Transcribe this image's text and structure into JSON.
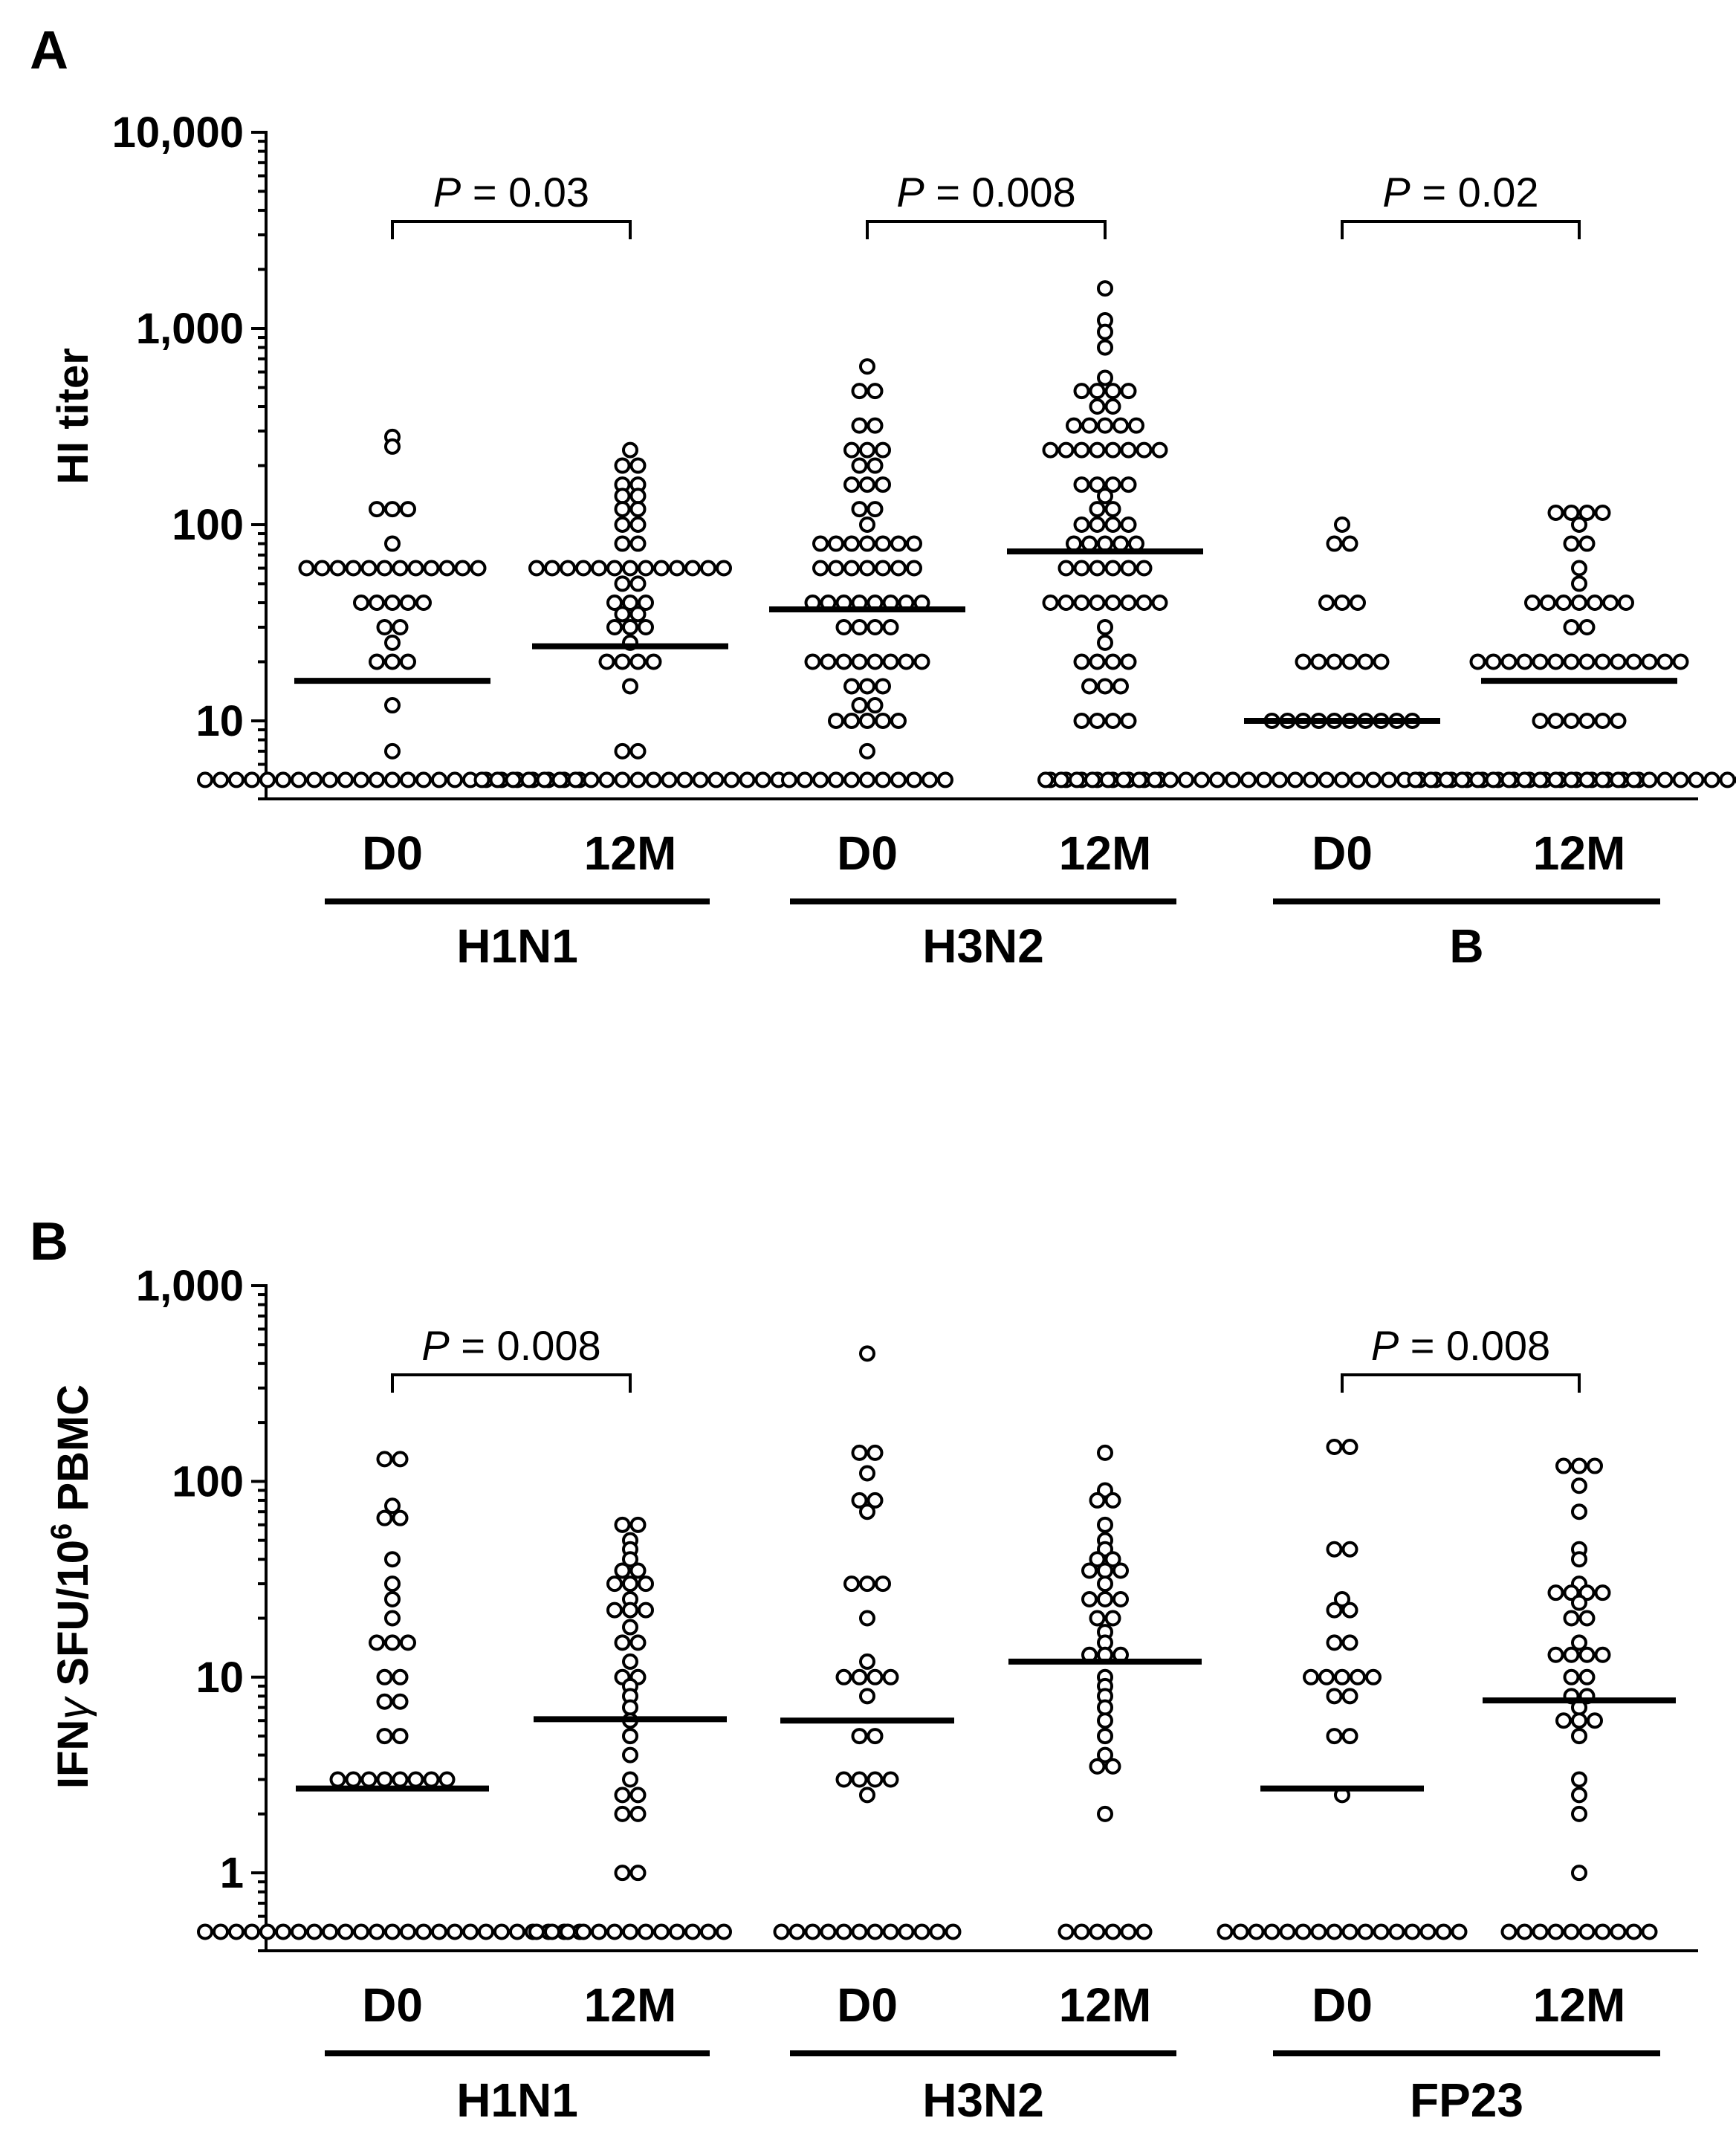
{
  "chart_data": [
    {
      "type": "scatter",
      "panel": "A",
      "ylabel": "HI titer",
      "yscale": "log",
      "ylim": [
        4,
        10000
      ],
      "yticks": [
        {
          "value": 10,
          "label": "10"
        },
        {
          "value": 100,
          "label": "100"
        },
        {
          "value": 1000,
          "label": "1,000"
        },
        {
          "value": 10000,
          "label": "10,000"
        }
      ],
      "categories": [
        "D0",
        "12M",
        "D0",
        "12M",
        "D0",
        "12M"
      ],
      "groups": [
        {
          "label": "H1N1",
          "columns": [
            0,
            1
          ]
        },
        {
          "label": "H3N2",
          "columns": [
            2,
            3
          ]
        },
        {
          "label": "B",
          "columns": [
            4,
            5
          ]
        }
      ],
      "series": [
        {
          "name": "H1N1 D0",
          "median": 16,
          "values": [
            280,
            250,
            120,
            120,
            120,
            80,
            60,
            60,
            60,
            60,
            60,
            60,
            60,
            60,
            60,
            60,
            60,
            60,
            40,
            40,
            40,
            40,
            40,
            30,
            30,
            25,
            20,
            20,
            20,
            12,
            7,
            5,
            5,
            5,
            5,
            5,
            5,
            5,
            5,
            5,
            5,
            5,
            5,
            5,
            5,
            5,
            5,
            5,
            5,
            5,
            5,
            5,
            5,
            5,
            5,
            5
          ]
        },
        {
          "name": "H1N1 12M",
          "median": 24,
          "values": [
            240,
            200,
            200,
            160,
            160,
            140,
            140,
            120,
            120,
            100,
            100,
            80,
            80,
            60,
            60,
            60,
            60,
            60,
            60,
            60,
            60,
            60,
            60,
            60,
            60,
            60,
            50,
            50,
            40,
            40,
            40,
            35,
            35,
            30,
            30,
            30,
            25,
            20,
            20,
            20,
            20,
            15,
            7,
            7,
            5,
            5,
            5,
            5,
            5,
            5,
            5,
            5,
            5,
            5,
            5,
            5,
            5,
            5,
            5,
            5,
            5,
            5,
            5,
            5
          ]
        },
        {
          "name": "H3N2 D0",
          "median": 37,
          "values": [
            640,
            480,
            480,
            320,
            320,
            240,
            240,
            240,
            200,
            200,
            160,
            160,
            160,
            120,
            120,
            100,
            80,
            80,
            80,
            80,
            80,
            80,
            80,
            60,
            60,
            60,
            60,
            60,
            60,
            60,
            40,
            40,
            40,
            40,
            40,
            40,
            40,
            40,
            30,
            30,
            30,
            30,
            20,
            20,
            20,
            20,
            20,
            20,
            20,
            20,
            15,
            15,
            15,
            12,
            12,
            10,
            10,
            10,
            10,
            10,
            7,
            5,
            5,
            5,
            5,
            5,
            5,
            5,
            5,
            5,
            5,
            5
          ]
        },
        {
          "name": "H3N2 12M",
          "median": 73,
          "values": [
            1600,
            1100,
            960,
            800,
            560,
            480,
            480,
            480,
            480,
            400,
            400,
            320,
            320,
            320,
            320,
            320,
            240,
            240,
            240,
            240,
            240,
            240,
            240,
            240,
            160,
            160,
            160,
            160,
            140,
            120,
            120,
            100,
            100,
            100,
            100,
            80,
            80,
            80,
            80,
            80,
            60,
            60,
            60,
            60,
            60,
            60,
            40,
            40,
            40,
            40,
            40,
            40,
            40,
            40,
            30,
            25,
            20,
            20,
            20,
            20,
            15,
            15,
            15,
            10,
            10,
            10,
            10,
            5,
            5,
            5,
            5,
            5,
            5,
            5,
            5
          ]
        },
        {
          "name": "B D0",
          "median": 10,
          "values": [
            100,
            80,
            80,
            40,
            40,
            40,
            20,
            20,
            20,
            20,
            20,
            20,
            10,
            10,
            10,
            10,
            10,
            10,
            10,
            10,
            10,
            10,
            5,
            5,
            5,
            5,
            5,
            5,
            5,
            5,
            5,
            5,
            5,
            5,
            5,
            5,
            5,
            5,
            5,
            5,
            5,
            5,
            5,
            5,
            5,
            5,
            5,
            5,
            5,
            5,
            5,
            5,
            5,
            5,
            5,
            5,
            5,
            5,
            5,
            5,
            5
          ]
        },
        {
          "name": "B 12M",
          "median": 16,
          "values": [
            115,
            115,
            115,
            115,
            100,
            80,
            80,
            60,
            50,
            40,
            40,
            40,
            40,
            40,
            40,
            40,
            30,
            30,
            20,
            20,
            20,
            20,
            20,
            20,
            20,
            20,
            20,
            20,
            20,
            20,
            20,
            20,
            10,
            10,
            10,
            10,
            10,
            10,
            5,
            5,
            5,
            5,
            5,
            5,
            5,
            5,
            5,
            5,
            5,
            5,
            5,
            5,
            5,
            5,
            5,
            5,
            5,
            5,
            5,
            5
          ]
        }
      ],
      "annotations": [
        {
          "text_italic": "P",
          "text": " = 0.03",
          "from": 0,
          "to": 1
        },
        {
          "text_italic": "P",
          "text": " = 0.008",
          "from": 2,
          "to": 3
        },
        {
          "text_italic": "P",
          "text": " = 0.02",
          "from": 4,
          "to": 5
        }
      ]
    },
    {
      "type": "scatter",
      "panel": "B",
      "ylabel_main": "IFN",
      "ylabel_gamma": "γ",
      "ylabel_mid": " SFU/10",
      "ylabel_sup": "6",
      "ylabel_end": " PBMC",
      "yscale": "log",
      "ylim": [
        0.4,
        1000
      ],
      "yticks": [
        {
          "value": 1,
          "label": "1"
        },
        {
          "value": 10,
          "label": "10"
        },
        {
          "value": 100,
          "label": "100"
        },
        {
          "value": 1000,
          "label": "1,000"
        }
      ],
      "categories": [
        "D0",
        "12M",
        "D0",
        "12M",
        "D0",
        "12M"
      ],
      "groups": [
        {
          "label": "H1N1",
          "columns": [
            0,
            1
          ]
        },
        {
          "label": "H3N2",
          "columns": [
            2,
            3
          ]
        },
        {
          "label": "FP23",
          "columns": [
            4,
            5
          ]
        }
      ],
      "series": [
        {
          "name": "H1N1 D0",
          "median": 2.7,
          "values": [
            130,
            120,
            75,
            65,
            60,
            40,
            30,
            25,
            20,
            15,
            15,
            15,
            10,
            10,
            7.5,
            7.5,
            5,
            5,
            3,
            3,
            3,
            3,
            3,
            3,
            3,
            3,
            0.5,
            0.5,
            0.5,
            0.5,
            0.5,
            0.5,
            0.5,
            0.5,
            0.5,
            0.5,
            0.5,
            0.5,
            0.5,
            0.5,
            0.5,
            0.5,
            0.5,
            0.5,
            0.5,
            0.5,
            0.5,
            0.5,
            0.5,
            0.5,
            0.5
          ]
        },
        {
          "name": "H1N1 12M",
          "median": 6.1,
          "values": [
            60,
            55,
            50,
            45,
            40,
            35,
            35,
            30,
            30,
            28,
            25,
            22,
            20,
            20,
            18,
            15,
            15,
            12,
            10,
            10,
            9,
            8,
            7,
            6,
            5,
            4,
            3,
            2.5,
            2.5,
            2,
            2,
            1,
            1,
            0.5,
            0.5,
            0.5,
            0.5,
            0.5,
            0.5,
            0.5,
            0.5,
            0.5,
            0.5,
            0.5,
            0.5,
            0.5
          ]
        },
        {
          "name": "H3N2 D0",
          "median": 6,
          "values": [
            450,
            140,
            130,
            110,
            80,
            80,
            70,
            30,
            30,
            30,
            20,
            12,
            10,
            10,
            10,
            10,
            8,
            5,
            5,
            3,
            3,
            3,
            3,
            2.5,
            0.5,
            0.5,
            0.5,
            0.5,
            0.5,
            0.5,
            0.5,
            0.5,
            0.5,
            0.5,
            0.5,
            0.5
          ]
        },
        {
          "name": "H3N2 12M",
          "median": 12,
          "values": [
            140,
            90,
            80,
            75,
            60,
            50,
            45,
            40,
            40,
            35,
            35,
            35,
            30,
            25,
            25,
            25,
            20,
            20,
            17,
            15,
            13,
            12,
            12,
            10,
            9,
            8,
            7,
            6,
            5,
            4,
            3.5,
            3.5,
            2,
            0.5,
            0.5,
            0.5,
            0.5,
            0.5,
            0.5
          ]
        },
        {
          "name": "FP23 D0",
          "median": 2.7,
          "values": [
            150,
            150,
            45,
            45,
            25,
            22,
            20,
            15,
            15,
            10,
            10,
            10,
            10,
            10,
            8,
            8,
            5,
            5,
            2.5,
            0.5,
            0.5,
            0.5,
            0.5,
            0.5,
            0.5,
            0.5,
            0.5,
            0.5,
            0.5,
            0.5,
            0.5,
            0.5,
            0.5,
            0.5,
            0.5
          ]
        },
        {
          "name": "FP23 12M",
          "median": 7.6,
          "values": [
            120,
            115,
            110,
            95,
            70,
            45,
            40,
            30,
            27,
            25,
            25,
            25,
            24,
            20,
            20,
            15,
            13,
            13,
            12,
            12,
            10,
            10,
            8,
            8,
            7,
            6,
            6,
            5.5,
            5,
            3,
            2.5,
            2,
            1,
            0.5,
            0.5,
            0.5,
            0.5,
            0.5,
            0.5,
            0.5,
            0.5,
            0.5,
            0.5
          ]
        }
      ],
      "annotations": [
        {
          "text_italic": "P",
          "text": " = 0.008",
          "from": 0,
          "to": 1
        },
        {
          "text_italic": "P",
          "text": " = 0.008",
          "from": 4,
          "to": 5
        }
      ]
    }
  ]
}
